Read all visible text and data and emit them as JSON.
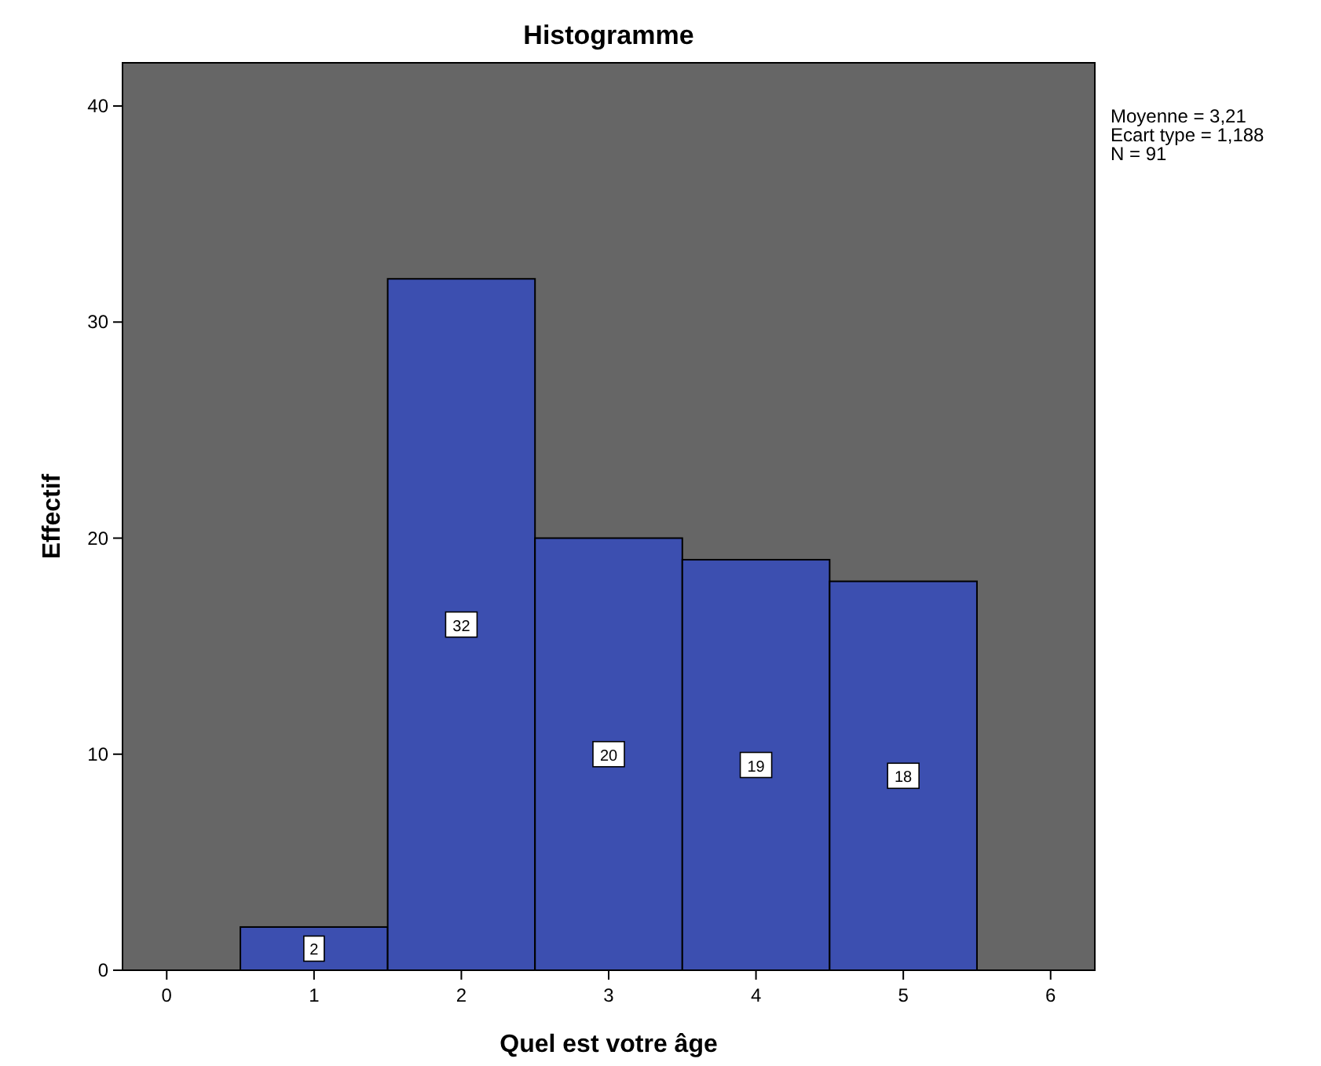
{
  "chart_data": {
    "type": "histogram",
    "title": "Histogramme",
    "xlabel": "Quel est votre âge",
    "ylabel": "Effectif",
    "bins": [
      0.5,
      1.5,
      2.5,
      3.5,
      4.5,
      5.5
    ],
    "values": [
      2,
      32,
      20,
      19,
      18
    ],
    "color": "#3c4fb0",
    "xlim": [
      -0.3,
      6.3
    ],
    "xticks": [
      0,
      1,
      2,
      3,
      4,
      5,
      6
    ],
    "ylim": [
      0,
      42
    ],
    "yticks": [
      0,
      10,
      20,
      30,
      40
    ],
    "grid": false,
    "data_labels": true,
    "annotations": [
      "Moyenne = 3,21",
      "Ecart type = 1,188",
      "N = 91"
    ]
  }
}
